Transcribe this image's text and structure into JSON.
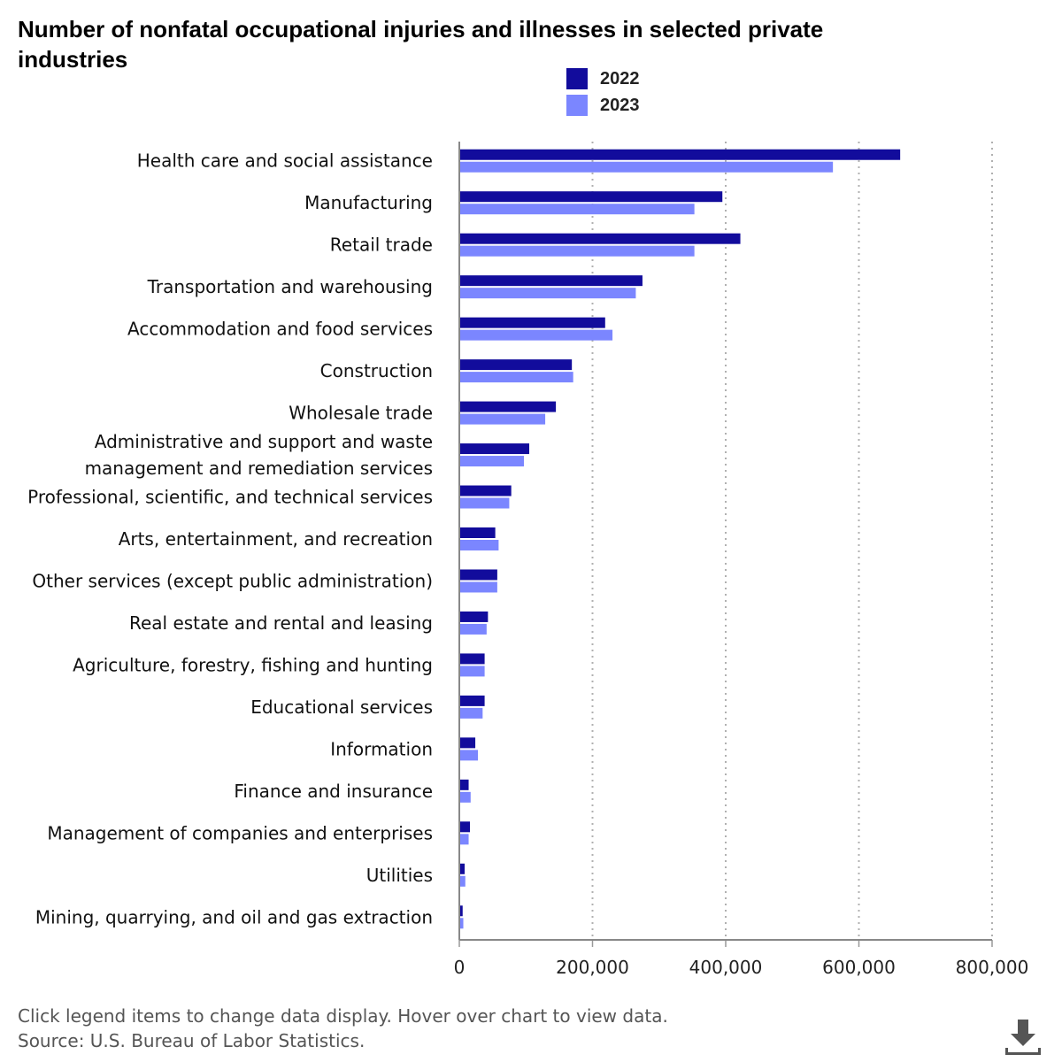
{
  "title": "Number of nonfatal occupational injuries and illnesses in selected private industries",
  "legend": [
    {
      "label": "2022",
      "color": "#120c9c"
    },
    {
      "label": "2023",
      "color": "#7b86ff"
    }
  ],
  "footer": {
    "note": "Click legend items to change data display. Hover over chart to view data.",
    "source": "Source: U.S. Bureau of Labor Statistics."
  },
  "download_icon": "download-icon",
  "chart_data": {
    "type": "bar",
    "orientation": "horizontal",
    "title": "Number of nonfatal occupational injuries and illnesses in selected private industries",
    "xlabel": "",
    "ylabel": "",
    "xlim": [
      0,
      800000
    ],
    "xticks": [
      0,
      200000,
      400000,
      600000,
      800000
    ],
    "xtick_labels": [
      "0",
      "200,000",
      "400,000",
      "600,000",
      "800,000"
    ],
    "grid": true,
    "legend_position": "top",
    "categories": [
      [
        "Health care and social assistance"
      ],
      [
        "Manufacturing"
      ],
      [
        "Retail trade"
      ],
      [
        "Transportation and warehousing"
      ],
      [
        "Accommodation and food services"
      ],
      [
        "Construction"
      ],
      [
        "Wholesale trade"
      ],
      [
        "Administrative and support and waste",
        "management and remediation services"
      ],
      [
        "Professional, scientific, and technical services"
      ],
      [
        "Arts, entertainment, and recreation"
      ],
      [
        "Other services (except public administration)"
      ],
      [
        "Real estate and rental and leasing"
      ],
      [
        "Agriculture, forestry, fishing and hunting"
      ],
      [
        "Educational services"
      ],
      [
        "Information"
      ],
      [
        "Finance and insurance"
      ],
      [
        "Management of companies and enterprises"
      ],
      [
        "Utilities"
      ],
      [
        "Mining, quarrying, and oil and gas extraction"
      ]
    ],
    "series": [
      {
        "name": "2022",
        "color": "#120c9c",
        "values": [
          662000,
          395000,
          422000,
          275000,
          219000,
          169000,
          145000,
          105000,
          78000,
          54000,
          57000,
          43000,
          38000,
          38000,
          24000,
          14000,
          16000,
          8000,
          5000
        ]
      },
      {
        "name": "2023",
        "color": "#7b86ff",
        "values": [
          561000,
          353000,
          353000,
          265000,
          230000,
          171000,
          129000,
          97000,
          75000,
          59000,
          57000,
          41000,
          38000,
          35000,
          28000,
          17000,
          14000,
          9000,
          6000
        ]
      }
    ]
  }
}
